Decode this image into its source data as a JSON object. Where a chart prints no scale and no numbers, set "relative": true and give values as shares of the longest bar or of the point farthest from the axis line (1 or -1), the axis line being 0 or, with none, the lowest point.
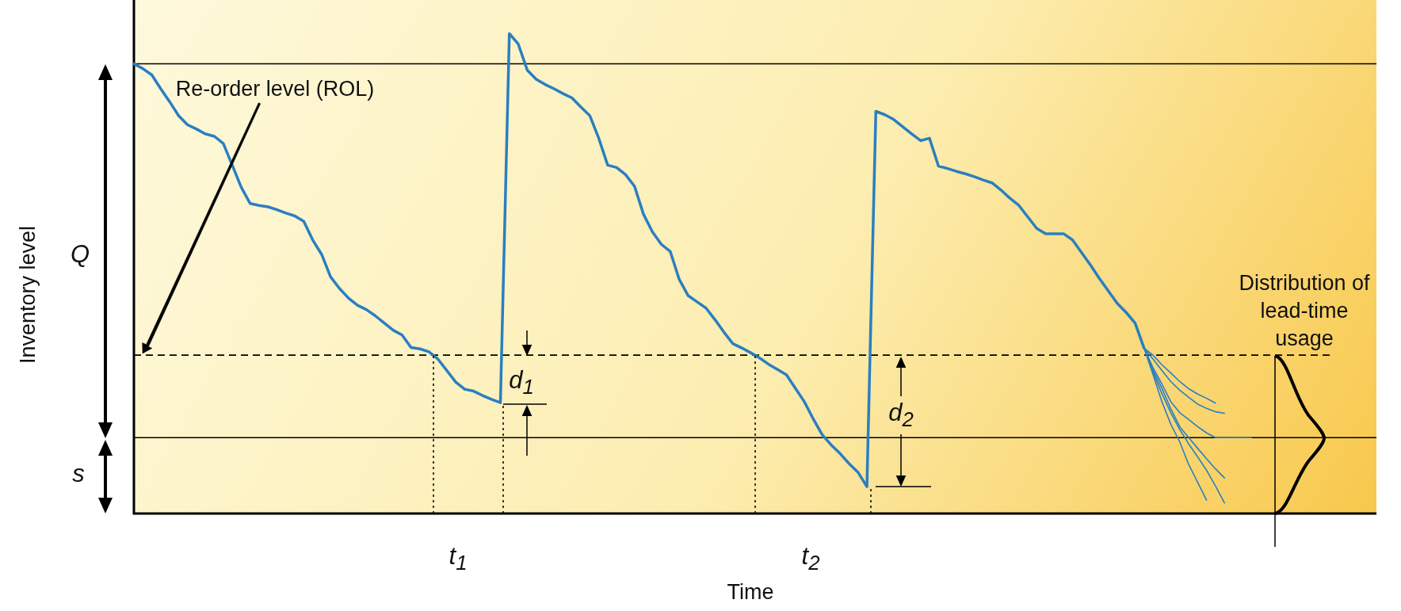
{
  "chart_data": {
    "type": "line",
    "relative": true,
    "xlabel": "Time",
    "ylabel": "Inventory level",
    "marker": "none",
    "categories": [
      null,
      null,
      null,
      null,
      null,
      null,
      null,
      null,
      null,
      null,
      null,
      null,
      null,
      null,
      null,
      null,
      null,
      null,
      null,
      null,
      null,
      null,
      null,
      null,
      null,
      null,
      null,
      null,
      null,
      null,
      null,
      null,
      null,
      null,
      null,
      null,
      null,
      null,
      null,
      null,
      null,
      null,
      null,
      null,
      null,
      null,
      null,
      null,
      null,
      null,
      null,
      null,
      null,
      null,
      null,
      null,
      null,
      null,
      null,
      null,
      null,
      null,
      null,
      null,
      null,
      null,
      null,
      null,
      null,
      null,
      null,
      null,
      null,
      null,
      null,
      null,
      null,
      null,
      null,
      null,
      null,
      null,
      null,
      null,
      null,
      null,
      null,
      null,
      null,
      null,
      null,
      null,
      null,
      null,
      null,
      null,
      null,
      null,
      null,
      null,
      null,
      null,
      null,
      null,
      null,
      null,
      null,
      null,
      null,
      null,
      null,
      null,
      null,
      null,
      null,
      null,
      null,
      null,
      null,
      null,
      null,
      null,
      null,
      null,
      null,
      null,
      null,
      null,
      null,
      null,
      null,
      null,
      null,
      null,
      null,
      null,
      null,
      null,
      null,
      null
    ],
    "series": [
      {
        "color": "#2a7fc1",
        "values": [
          0.937,
          0.927,
          0.914,
          0.885,
          0.858,
          0.829,
          0.81,
          0.801,
          0.791,
          0.786,
          0.771,
          0.726,
          0.68,
          0.646,
          0.642,
          0.639,
          0.633,
          0.626,
          0.62,
          0.609,
          0.57,
          0.54,
          0.493,
          0.469,
          0.449,
          0.434,
          0.425,
          0.412,
          0.397,
          0.382,
          0.372,
          0.346,
          0.343,
          0.337,
          0.322,
          0.298,
          0.274,
          0.259,
          0.255,
          0.246,
          0.238,
          0.231,
          1.0,
          0.978,
          0.924,
          0.905,
          0.894,
          0.885,
          0.875,
          0.866,
          0.847,
          0.829,
          0.782,
          0.726,
          0.721,
          0.706,
          0.682,
          0.624,
          0.587,
          0.561,
          0.546,
          0.488,
          0.454,
          0.441,
          0.428,
          0.404,
          0.378,
          0.354,
          0.345,
          0.335,
          0.324,
          0.311,
          0.3,
          0.289,
          0.261,
          0.233,
          0.197,
          0.164,
          0.143,
          0.125,
          0.104,
          0.086,
          0.056,
          0.838,
          0.831,
          0.821,
          0.806,
          0.791,
          0.777,
          0.782,
          0.724,
          0.719,
          0.713,
          0.708,
          0.702,
          0.695,
          0.689,
          0.674,
          0.657,
          0.642,
          0.618,
          0.594,
          0.583,
          0.583,
          0.583,
          0.57,
          0.544,
          0.518,
          0.49,
          0.464,
          0.438,
          0.419,
          0.397,
          0.345,
          null,
          null,
          null,
          null,
          null,
          null,
          null,
          null,
          null,
          null,
          null,
          null,
          null,
          null,
          null,
          null,
          null,
          null,
          null,
          null,
          null,
          null,
          null,
          null,
          null,
          null
        ]
      },
      {
        "color": "#2a7fc1",
        "values": [
          null,
          null,
          null,
          null,
          null,
          null,
          null,
          null,
          null,
          null,
          null,
          null,
          null,
          null,
          null,
          null,
          null,
          null,
          null,
          null,
          null,
          null,
          null,
          null,
          null,
          null,
          null,
          null,
          null,
          null,
          null,
          null,
          null,
          null,
          null,
          null,
          null,
          null,
          null,
          null,
          null,
          null,
          null,
          null,
          null,
          null,
          null,
          null,
          null,
          null,
          null,
          null,
          null,
          null,
          null,
          null,
          null,
          null,
          null,
          null,
          null,
          null,
          null,
          null,
          null,
          null,
          null,
          null,
          null,
          null,
          null,
          null,
          null,
          null,
          null,
          null,
          null,
          null,
          null,
          null,
          null,
          null,
          null,
          null,
          null,
          null,
          null,
          null,
          null,
          null,
          null,
          null,
          null,
          null,
          null,
          null,
          null,
          null,
          null,
          null,
          null,
          null,
          null,
          null,
          null,
          null,
          null,
          null,
          null,
          null,
          null,
          null,
          null,
          0.345,
          0.295,
          0.25,
          0.21,
          0.175,
          0.145,
          0.118,
          0.09,
          0.057,
          0.022,
          null,
          null,
          null,
          null,
          null,
          null,
          null,
          null,
          null,
          null,
          null,
          null,
          null,
          null,
          null,
          null,
          null
        ]
      },
      {
        "color": "#2a7fc1",
        "values": [
          null,
          null,
          null,
          null,
          null,
          null,
          null,
          null,
          null,
          null,
          null,
          null,
          null,
          null,
          null,
          null,
          null,
          null,
          null,
          null,
          null,
          null,
          null,
          null,
          null,
          null,
          null,
          null,
          null,
          null,
          null,
          null,
          null,
          null,
          null,
          null,
          null,
          null,
          null,
          null,
          null,
          null,
          null,
          null,
          null,
          null,
          null,
          null,
          null,
          null,
          null,
          null,
          null,
          null,
          null,
          null,
          null,
          null,
          null,
          null,
          null,
          null,
          null,
          null,
          null,
          null,
          null,
          null,
          null,
          null,
          null,
          null,
          null,
          null,
          null,
          null,
          null,
          null,
          null,
          null,
          null,
          null,
          null,
          null,
          null,
          null,
          null,
          null,
          null,
          null,
          null,
          null,
          null,
          null,
          null,
          null,
          null,
          null,
          null,
          null,
          null,
          null,
          null,
          null,
          null,
          null,
          null,
          null,
          null,
          null,
          null,
          null,
          null,
          0.345,
          0.3,
          0.261,
          0.218,
          0.181,
          0.158,
          0.136,
          0.114,
          0.093,
          0.074,
          null,
          null,
          null,
          null,
          null,
          null,
          null,
          null,
          null,
          null,
          null,
          null,
          null,
          null,
          null,
          null,
          null
        ]
      },
      {
        "color": "#2a7fc1",
        "values": [
          null,
          null,
          null,
          null,
          null,
          null,
          null,
          null,
          null,
          null,
          null,
          null,
          null,
          null,
          null,
          null,
          null,
          null,
          null,
          null,
          null,
          null,
          null,
          null,
          null,
          null,
          null,
          null,
          null,
          null,
          null,
          null,
          null,
          null,
          null,
          null,
          null,
          null,
          null,
          null,
          null,
          null,
          null,
          null,
          null,
          null,
          null,
          null,
          null,
          null,
          null,
          null,
          null,
          null,
          null,
          null,
          null,
          null,
          null,
          null,
          null,
          null,
          null,
          null,
          null,
          null,
          null,
          null,
          null,
          null,
          null,
          null,
          null,
          null,
          null,
          null,
          null,
          null,
          null,
          null,
          null,
          null,
          null,
          null,
          null,
          null,
          null,
          null,
          null,
          null,
          null,
          null,
          null,
          null,
          null,
          null,
          null,
          null,
          null,
          null,
          null,
          null,
          null,
          null,
          null,
          null,
          null,
          null,
          null,
          null,
          null,
          null,
          null,
          0.345,
          0.304,
          0.27,
          0.233,
          0.21,
          0.196,
          0.181,
          0.168,
          0.158,
          0.158,
          0.158,
          0.158,
          0.158,
          null,
          null,
          null,
          null,
          null,
          null,
          null,
          null,
          null,
          null,
          null,
          null,
          null,
          null
        ]
      },
      {
        "color": "#2a7fc1",
        "values": [
          null,
          null,
          null,
          null,
          null,
          null,
          null,
          null,
          null,
          null,
          null,
          null,
          null,
          null,
          null,
          null,
          null,
          null,
          null,
          null,
          null,
          null,
          null,
          null,
          null,
          null,
          null,
          null,
          null,
          null,
          null,
          null,
          null,
          null,
          null,
          null,
          null,
          null,
          null,
          null,
          null,
          null,
          null,
          null,
          null,
          null,
          null,
          null,
          null,
          null,
          null,
          null,
          null,
          null,
          null,
          null,
          null,
          null,
          null,
          null,
          null,
          null,
          null,
          null,
          null,
          null,
          null,
          null,
          null,
          null,
          null,
          null,
          null,
          null,
          null,
          null,
          null,
          null,
          null,
          null,
          null,
          null,
          null,
          null,
          null,
          null,
          null,
          null,
          null,
          null,
          null,
          null,
          null,
          null,
          null,
          null,
          null,
          null,
          null,
          null,
          null,
          null,
          null,
          null,
          null,
          null,
          null,
          null,
          null,
          null,
          null,
          null,
          null,
          0.345,
          0.322,
          0.298,
          0.275,
          0.257,
          0.242,
          0.228,
          0.219,
          0.212,
          0.209,
          null,
          null,
          null,
          null,
          null,
          null,
          null,
          null,
          null,
          null,
          null,
          null,
          null,
          null,
          null,
          null,
          null
        ]
      },
      {
        "color": "#2a7fc1",
        "values": [
          null,
          null,
          null,
          null,
          null,
          null,
          null,
          null,
          null,
          null,
          null,
          null,
          null,
          null,
          null,
          null,
          null,
          null,
          null,
          null,
          null,
          null,
          null,
          null,
          null,
          null,
          null,
          null,
          null,
          null,
          null,
          null,
          null,
          null,
          null,
          null,
          null,
          null,
          null,
          null,
          null,
          null,
          null,
          null,
          null,
          null,
          null,
          null,
          null,
          null,
          null,
          null,
          null,
          null,
          null,
          null,
          null,
          null,
          null,
          null,
          null,
          null,
          null,
          null,
          null,
          null,
          null,
          null,
          null,
          null,
          null,
          null,
          null,
          null,
          null,
          null,
          null,
          null,
          null,
          null,
          null,
          null,
          null,
          null,
          null,
          null,
          null,
          null,
          null,
          null,
          null,
          null,
          null,
          null,
          null,
          null,
          null,
          null,
          null,
          null,
          null,
          null,
          null,
          null,
          null,
          null,
          null,
          null,
          null,
          null,
          null,
          null,
          null,
          0.345,
          0.33,
          0.31,
          0.293,
          0.275,
          0.26,
          0.249,
          0.24,
          0.23,
          null,
          null,
          null,
          null,
          null,
          null,
          null,
          null,
          null,
          null,
          null,
          null,
          null,
          null,
          null,
          null,
          null,
          null
        ]
      },
      {
        "color": "#2a7fc1",
        "values": [
          null,
          null,
          null,
          null,
          null,
          null,
          null,
          null,
          null,
          null,
          null,
          null,
          null,
          null,
          null,
          null,
          null,
          null,
          null,
          null,
          null,
          null,
          null,
          null,
          null,
          null,
          null,
          null,
          null,
          null,
          null,
          null,
          null,
          null,
          null,
          null,
          null,
          null,
          null,
          null,
          null,
          null,
          null,
          null,
          null,
          null,
          null,
          null,
          null,
          null,
          null,
          null,
          null,
          null,
          null,
          null,
          null,
          null,
          null,
          null,
          null,
          null,
          null,
          null,
          null,
          null,
          null,
          null,
          null,
          null,
          null,
          null,
          null,
          null,
          null,
          null,
          null,
          null,
          null,
          null,
          null,
          null,
          null,
          null,
          null,
          null,
          null,
          null,
          null,
          null,
          null,
          null,
          null,
          null,
          null,
          null,
          null,
          null,
          null,
          null,
          null,
          null,
          null,
          null,
          null,
          null,
          null,
          null,
          null,
          null,
          null,
          null,
          null,
          0.345,
          0.29,
          0.233,
          0.186,
          0.149,
          0.102,
          0.065,
          0.028,
          null,
          null,
          null,
          null,
          null,
          null,
          null,
          null,
          null,
          null,
          null,
          null,
          null,
          null,
          null,
          null,
          null,
          null,
          null
        ]
      }
    ],
    "ref_lines": [
      {
        "axis": "y",
        "value": 0.937,
        "color": "#000000",
        "line_style": "solid"
      },
      {
        "axis": "y",
        "value": 0.33,
        "color": "#000000",
        "line_style": "dashed"
      },
      {
        "axis": "y",
        "value": 0.158,
        "color": "#000000",
        "line_style": "solid"
      }
    ],
    "annotations": [
      "Re-order level (ROL)",
      "Q",
      "s",
      "t$_{1}$",
      "t$_{2}$",
      "d$_{1}$",
      "d$_{2}$",
      "Distribution of lead-time usage"
    ]
  }
}
